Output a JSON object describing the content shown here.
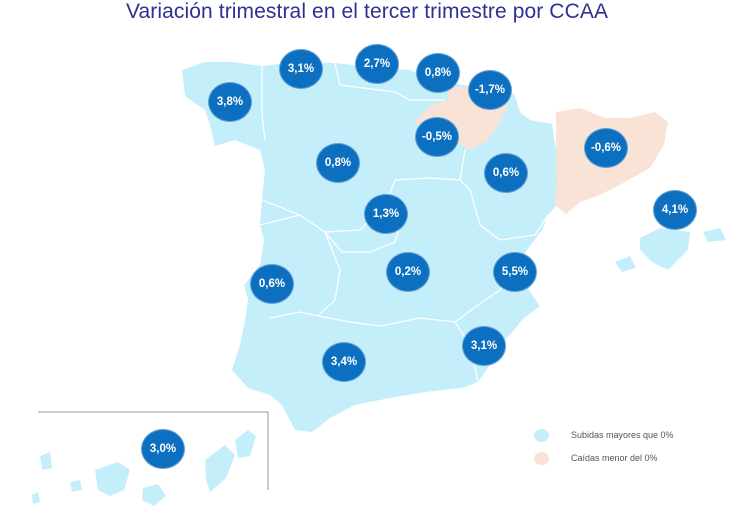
{
  "title": "Variación trimestral en el tercer trimestre por CCAA",
  "colors": {
    "up": "#c5eefb",
    "down": "#f9e2d6",
    "bubble": "#0d6fbf",
    "border": "#ffffff"
  },
  "regions": [
    {
      "name": "Galicia",
      "value": "3,8%",
      "trend": "up"
    },
    {
      "name": "Asturias",
      "value": "3,1%",
      "trend": "up"
    },
    {
      "name": "Cantabria",
      "value": "2,7%",
      "trend": "up"
    },
    {
      "name": "País Vasco",
      "value": "0,8%",
      "trend": "up"
    },
    {
      "name": "Navarra",
      "value": "-1,7%",
      "trend": "down"
    },
    {
      "name": "La Rioja",
      "value": "-0,5%",
      "trend": "down"
    },
    {
      "name": "Cataluña",
      "value": "-0,6%",
      "trend": "down"
    },
    {
      "name": "Castilla y León",
      "value": "0,8%",
      "trend": "up"
    },
    {
      "name": "Aragón",
      "value": "0,6%",
      "trend": "up"
    },
    {
      "name": "Baleares",
      "value": "4,1%",
      "trend": "up"
    },
    {
      "name": "Madrid",
      "value": "1,3%",
      "trend": "up"
    },
    {
      "name": "Extremadura",
      "value": "0,6%",
      "trend": "up"
    },
    {
      "name": "Castilla-La Mancha",
      "value": "0,2%",
      "trend": "up"
    },
    {
      "name": "Comunidad Valenciana",
      "value": "5,5%",
      "trend": "up"
    },
    {
      "name": "Murcia",
      "value": "3,1%",
      "trend": "up"
    },
    {
      "name": "Andalucía",
      "value": "3,4%",
      "trend": "up"
    },
    {
      "name": "Canarias",
      "value": "3,0%",
      "trend": "up"
    }
  ],
  "legend": {
    "up_label": "Subidas mayores que 0%",
    "down_label": "Caídas menor del 0%"
  }
}
